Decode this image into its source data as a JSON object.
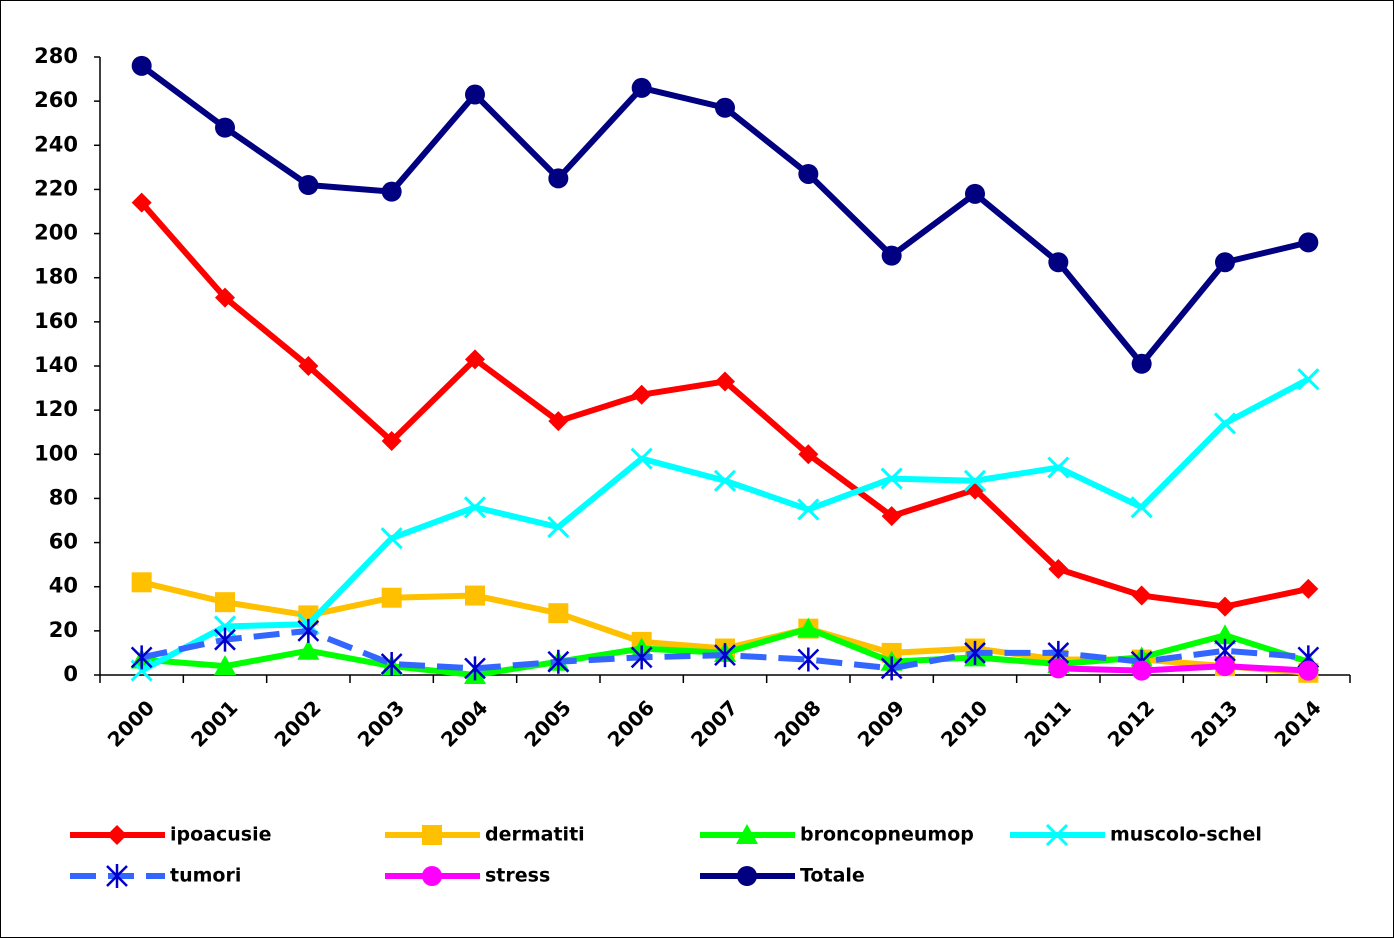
{
  "chart_data": {
    "type": "line",
    "categories": [
      "2000",
      "2001",
      "2002",
      "2003",
      "2004",
      "2005",
      "2006",
      "2007",
      "2008",
      "2009",
      "2010",
      "2011",
      "2012",
      "2013",
      "2014"
    ],
    "ylim": [
      0,
      280
    ],
    "yticks": [
      0,
      20,
      40,
      60,
      80,
      100,
      120,
      140,
      160,
      180,
      200,
      220,
      240,
      260,
      280
    ],
    "grid": false,
    "legend": "bottom",
    "series": [
      {
        "name": "ipoacusie",
        "color": "#ff0000",
        "marker": "diamond",
        "values": [
          214,
          171,
          140,
          106,
          143,
          115,
          127,
          133,
          100,
          72,
          84,
          48,
          36,
          31,
          39
        ]
      },
      {
        "name": "dermatiti",
        "color": "#ffc000",
        "marker": "square",
        "values": [
          42,
          33,
          27,
          35,
          36,
          28,
          15,
          12,
          21,
          10,
          12,
          7,
          7,
          4,
          1
        ]
      },
      {
        "name": "broncopneumop",
        "color": "#00ff00",
        "marker": "triangle",
        "values": [
          7,
          4,
          11,
          4,
          0,
          6,
          12,
          10,
          21,
          6,
          8,
          5,
          8,
          18,
          6
        ]
      },
      {
        "name": "muscolo-schel",
        "color": "#00ffff",
        "marker": "x",
        "values": [
          2,
          22,
          23,
          62,
          76,
          67,
          98,
          88,
          75,
          89,
          88,
          94,
          76,
          114,
          134
        ]
      },
      {
        "name": "tumori",
        "color": "#3366ff",
        "marker": "asterisk",
        "dashed": true,
        "values": [
          8,
          16,
          20,
          5,
          3,
          6,
          8,
          9,
          7,
          3,
          10,
          10,
          6,
          11,
          8
        ]
      },
      {
        "name": "stress",
        "color": "#ff00ff",
        "marker": "circle",
        "values": [
          null,
          null,
          null,
          null,
          null,
          null,
          null,
          null,
          null,
          null,
          null,
          3,
          2,
          4,
          2
        ]
      },
      {
        "name": "Totale",
        "color": "#000080",
        "marker": "circle",
        "values": [
          276,
          248,
          222,
          219,
          263,
          225,
          266,
          257,
          227,
          190,
          218,
          187,
          141,
          187,
          196
        ]
      }
    ]
  }
}
